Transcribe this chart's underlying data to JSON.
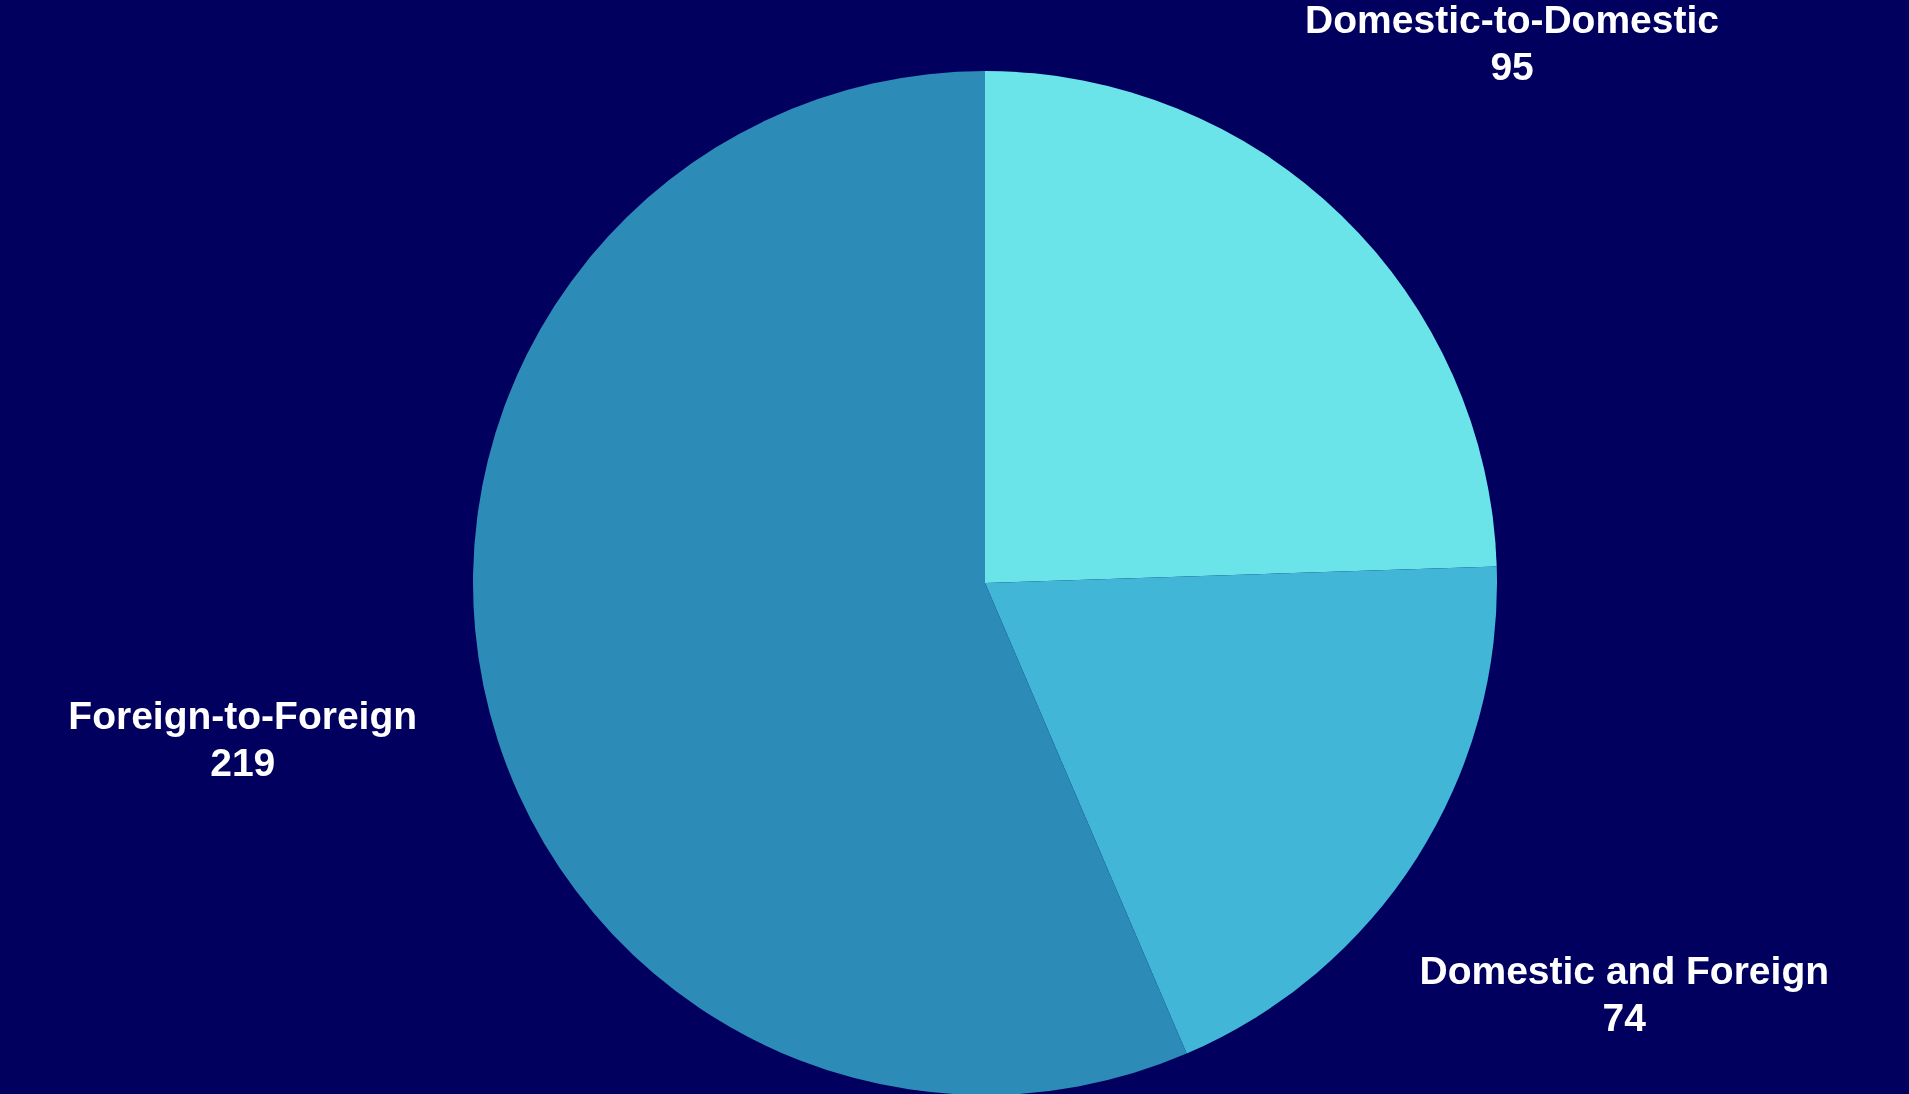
{
  "chart_data": {
    "type": "pie",
    "categories": [
      "Domestic-to-Domestic",
      "Domestic and Foreign",
      "Foreign-to-Foreign"
    ],
    "values": [
      95,
      74,
      219
    ],
    "colors": [
      "#6ae4e8",
      "#42b6d6",
      "#2d8bb8"
    ],
    "data_labels": true
  }
}
